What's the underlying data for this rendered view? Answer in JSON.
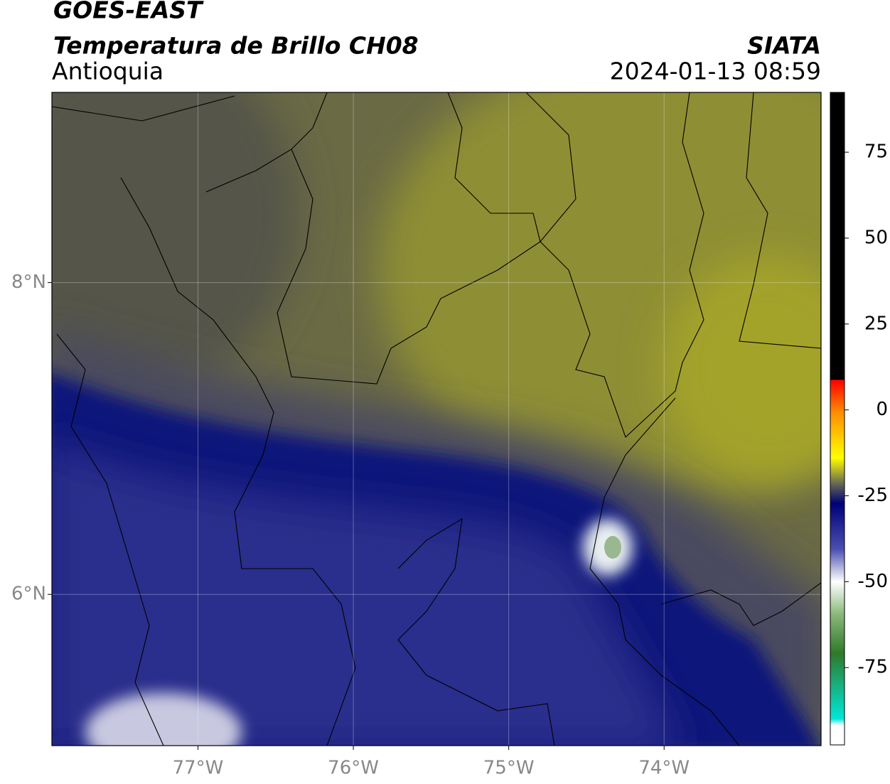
{
  "header": {
    "title": "GOES-EAST",
    "subtitle": "Temperatura de Brillo CH08",
    "region": "Antioquia",
    "source": "SIATA",
    "timestamp": "2024-01-13 08:59"
  },
  "map": {
    "xlim": [
      -77.94,
      -72.99
    ],
    "ylim": [
      5.03,
      9.22
    ],
    "xticks": [
      {
        "value": -77,
        "label": "77°W"
      },
      {
        "value": -76,
        "label": "76°W"
      },
      {
        "value": -75,
        "label": "75°W"
      },
      {
        "value": -74,
        "label": "74°W"
      }
    ],
    "yticks": [
      {
        "value": 6,
        "label": "6°N"
      },
      {
        "value": 8,
        "label": "8°N"
      }
    ],
    "grid": true
  },
  "colorbar": {
    "lim": [
      -97.5,
      92.4
    ],
    "ticks": [
      -75,
      -50,
      -25,
      0,
      25,
      50,
      75
    ]
  }
}
